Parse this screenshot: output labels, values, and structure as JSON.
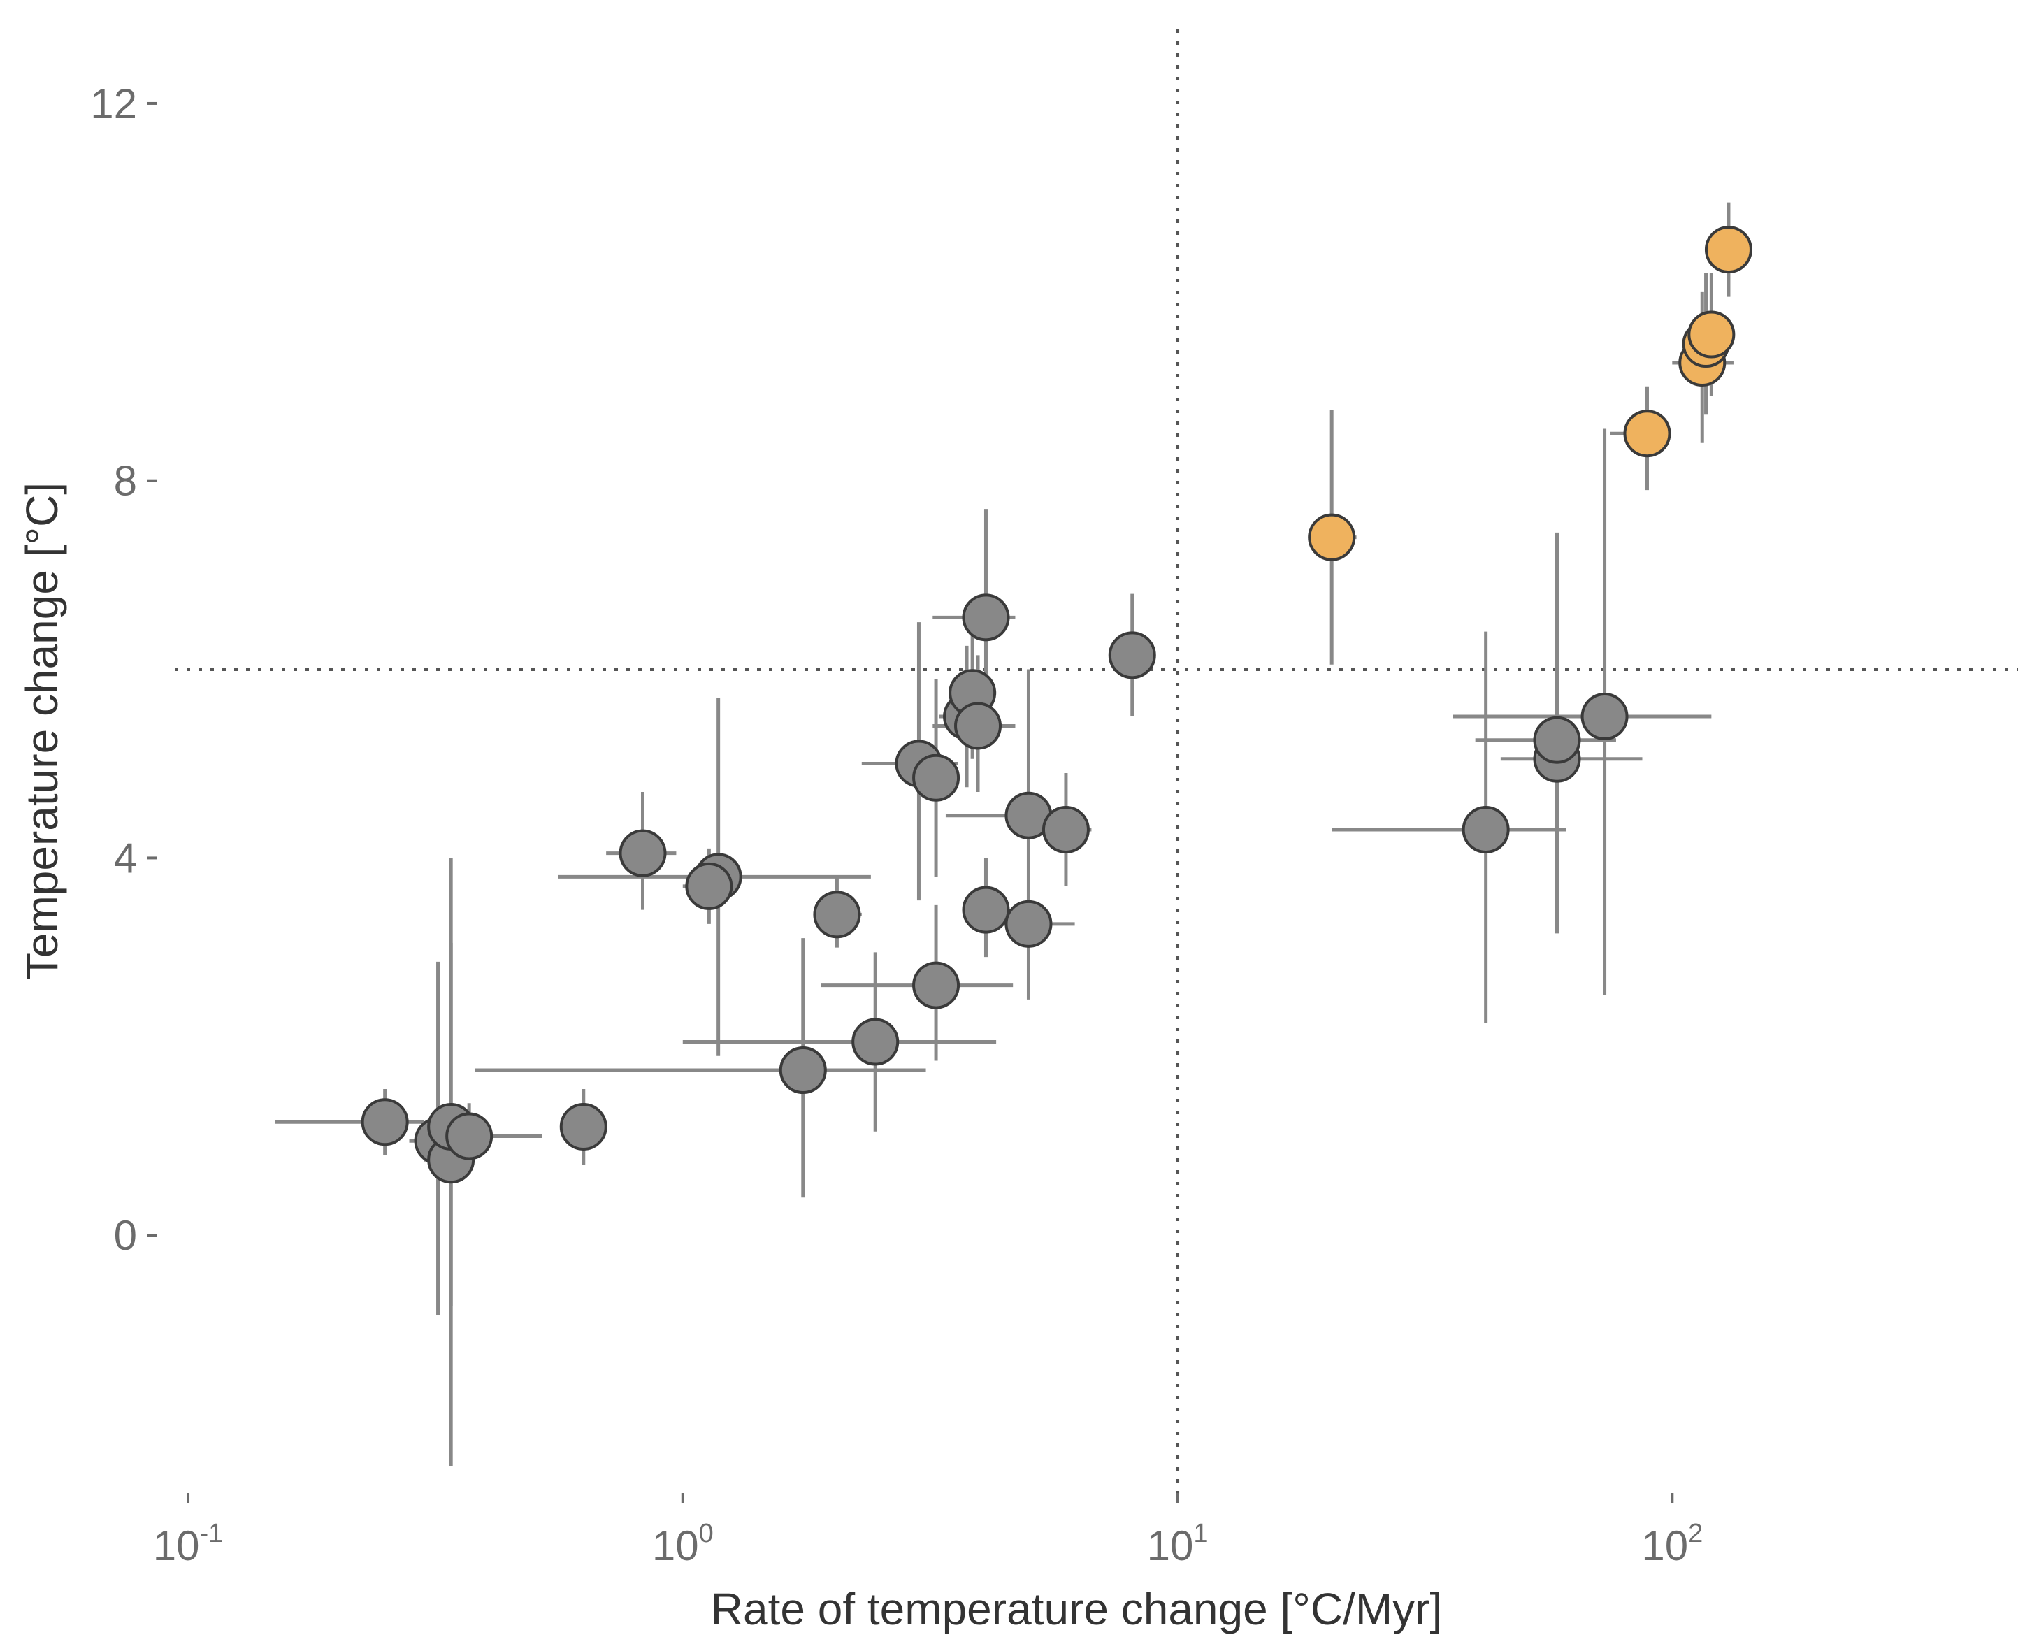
{
  "chart_data": {
    "type": "scatter",
    "xlabel": "Rate of temperature change [°C/Myr]",
    "ylabel": "Temperature change [°C]",
    "x_scale": "log",
    "xlim": [
      0.06,
      500
    ],
    "ylim": [
      -2.6,
      12.8
    ],
    "x_ticks": [
      {
        "value": 0.1,
        "base": "10",
        "exp": "-1"
      },
      {
        "value": 1,
        "base": "10",
        "exp": "0"
      },
      {
        "value": 10,
        "base": "10",
        "exp": "1"
      },
      {
        "value": 100,
        "base": "10",
        "exp": "2"
      }
    ],
    "y_ticks": [
      {
        "value": 0,
        "label": "0"
      },
      {
        "value": 4,
        "label": "4"
      },
      {
        "value": 8,
        "label": "8"
      },
      {
        "value": 12,
        "label": "12"
      }
    ],
    "grid": false,
    "reference_lines": {
      "x": 10,
      "y": 6,
      "style": "dotted"
    },
    "colors": {
      "gray_points": "#888888",
      "orange_points": "#EFB25E",
      "error_bars": "#888888",
      "point_outline": "#3a3a3a"
    },
    "series": [
      {
        "color": "#888888",
        "points": [
          {
            "x": 0.25,
            "y": 1.2,
            "xmin": 0.15,
            "xmax": 0.3,
            "ymin": 0.85,
            "ymax": 1.55
          },
          {
            "x": 0.32,
            "y": 1.0,
            "xmin": 0.28,
            "xmax": 0.35,
            "ymin": -0.85,
            "ymax": 2.9
          },
          {
            "x": 0.34,
            "y": 0.8,
            "xmin": 0.3,
            "xmax": 0.37,
            "ymin": -2.45,
            "ymax": 4.0
          },
          {
            "x": 0.34,
            "y": 1.15,
            "xmin": 0.3,
            "xmax": 0.37,
            "ymin": -0.75,
            "ymax": 3.1
          },
          {
            "x": 0.37,
            "y": 1.05,
            "xmin": 0.33,
            "xmax": 0.52,
            "ymin": 0.65,
            "ymax": 1.4
          },
          {
            "x": 0.63,
            "y": 1.15,
            "xmin": 0.6,
            "xmax": 0.66,
            "ymin": 0.75,
            "ymax": 1.55
          },
          {
            "x": 0.83,
            "y": 4.05,
            "xmin": 0.7,
            "xmax": 0.97,
            "ymin": 3.45,
            "ymax": 4.7
          },
          {
            "x": 1.18,
            "y": 3.8,
            "xmin": 0.56,
            "xmax": 2.4,
            "ymin": 1.9,
            "ymax": 5.7
          },
          {
            "x": 1.13,
            "y": 3.7,
            "xmin": 1.0,
            "xmax": 1.25,
            "ymin": 3.3,
            "ymax": 4.1
          },
          {
            "x": 2.05,
            "y": 3.4,
            "xmin": 1.9,
            "xmax": 2.3,
            "ymin": 3.05,
            "ymax": 3.8
          },
          {
            "x": 1.75,
            "y": 1.75,
            "xmin": 0.38,
            "xmax": 3.1,
            "ymin": 0.4,
            "ymax": 3.15
          },
          {
            "x": 2.45,
            "y": 2.05,
            "xmin": 1.0,
            "xmax": 4.3,
            "ymin": 1.1,
            "ymax": 3.0
          },
          {
            "x": 3.25,
            "y": 2.65,
            "xmin": 1.9,
            "xmax": 4.65,
            "ymin": 1.85,
            "ymax": 3.5
          },
          {
            "x": 3.0,
            "y": 5.0,
            "xmin": 2.3,
            "xmax": 3.6,
            "ymin": 3.55,
            "ymax": 6.5
          },
          {
            "x": 3.25,
            "y": 4.85,
            "xmin": 2.9,
            "xmax": 3.6,
            "ymin": 3.8,
            "ymax": 5.9
          },
          {
            "x": 3.75,
            "y": 5.5,
            "xmin": 3.3,
            "xmax": 4.2,
            "ymin": 4.75,
            "ymax": 6.25
          },
          {
            "x": 3.85,
            "y": 5.75,
            "xmin": 3.5,
            "xmax": 4.3,
            "ymin": 5.05,
            "ymax": 6.55
          },
          {
            "x": 3.95,
            "y": 5.4,
            "xmin": 3.2,
            "xmax": 4.7,
            "ymin": 4.7,
            "ymax": 6.15
          },
          {
            "x": 4.1,
            "y": 6.55,
            "xmin": 3.2,
            "xmax": 4.7,
            "ymin": 5.35,
            "ymax": 7.7
          },
          {
            "x": 4.1,
            "y": 3.45,
            "xmin": 3.7,
            "xmax": 4.5,
            "ymin": 2.95,
            "ymax": 4.0
          },
          {
            "x": 5.0,
            "y": 4.45,
            "xmin": 3.4,
            "xmax": 5.8,
            "ymin": 3.05,
            "ymax": 6.0
          },
          {
            "x": 5.0,
            "y": 3.3,
            "xmin": 4.25,
            "xmax": 6.2,
            "ymin": 2.5,
            "ymax": 4.2
          },
          {
            "x": 5.95,
            "y": 4.3,
            "xmin": 5.4,
            "xmax": 6.7,
            "ymin": 3.7,
            "ymax": 4.9
          },
          {
            "x": 8.1,
            "y": 6.15,
            "xmin": 7.5,
            "xmax": 8.6,
            "ymin": 5.5,
            "ymax": 6.8
          },
          {
            "x": 42,
            "y": 4.3,
            "xmin": 20.5,
            "xmax": 61,
            "ymin": 2.25,
            "ymax": 6.4
          },
          {
            "x": 58.5,
            "y": 5.05,
            "xmin": 45,
            "xmax": 87,
            "ymin": 3.2,
            "ymax": 7.45
          },
          {
            "x": 58.5,
            "y": 5.25,
            "xmin": 40,
            "xmax": 77,
            "ymin": 4.8,
            "ymax": 5.7
          },
          {
            "x": 73,
            "y": 5.5,
            "xmin": 36,
            "xmax": 120,
            "ymin": 2.55,
            "ymax": 8.55
          }
        ]
      },
      {
        "color": "#EFB25E",
        "points": [
          {
            "x": 20.5,
            "y": 7.4,
            "xmin": 18.5,
            "xmax": 23,
            "ymin": 6.05,
            "ymax": 8.75
          },
          {
            "x": 89,
            "y": 8.5,
            "xmin": 75,
            "xmax": 99,
            "ymin": 7.9,
            "ymax": 9.0
          },
          {
            "x": 115,
            "y": 9.25,
            "xmin": 100,
            "xmax": 133,
            "ymin": 8.4,
            "ymax": 10.0
          },
          {
            "x": 117,
            "y": 9.45,
            "xmin": 113,
            "xmax": 121,
            "ymin": 8.7,
            "ymax": 10.2
          },
          {
            "x": 120,
            "y": 9.55,
            "xmin": 116,
            "xmax": 124,
            "ymin": 8.9,
            "ymax": 10.2
          },
          {
            "x": 130,
            "y": 10.45,
            "xmin": 124,
            "xmax": 136,
            "ymin": 9.95,
            "ymax": 10.95
          }
        ]
      }
    ]
  }
}
